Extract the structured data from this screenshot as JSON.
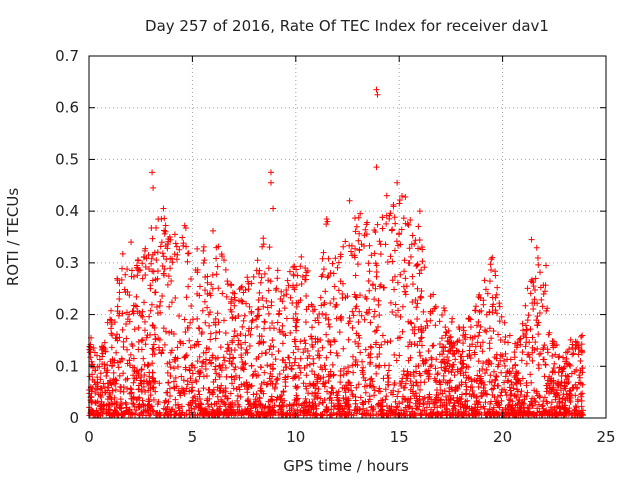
{
  "chart_data": {
    "type": "scatter",
    "title": "Day 257 of 2016, Rate Of TEC Index for receiver dav1",
    "xlabel": "GPS time / hours",
    "ylabel": "ROTI / TECUs",
    "xlim": [
      0,
      25
    ],
    "ylim": [
      0,
      0.7
    ],
    "xticks": [
      0,
      5,
      10,
      15,
      20,
      25
    ],
    "yticks": [
      0,
      0.1,
      0.2,
      0.3,
      0.4,
      0.5,
      0.6,
      0.7
    ],
    "xtick_labels": [
      "0",
      "5",
      "10",
      "15",
      "20",
      "25"
    ],
    "ytick_labels": [
      "0",
      "0.1",
      "0.2",
      "0.3",
      "0.4",
      "0.5",
      "0.6",
      "0.7"
    ],
    "grid": true,
    "marker": "+",
    "color": "#ff0000",
    "series": [
      {
        "name": "dav1",
        "envelope_hours": [
          0.0,
          0.5,
          1.0,
          1.5,
          2.0,
          2.5,
          3.0,
          3.5,
          4.0,
          4.5,
          5.0,
          5.5,
          6.0,
          6.5,
          7.0,
          7.5,
          8.0,
          8.5,
          9.0,
          9.5,
          10.0,
          10.5,
          11.0,
          11.5,
          12.0,
          12.5,
          13.0,
          13.5,
          14.0,
          14.5,
          15.0,
          15.5,
          16.0,
          16.5,
          17.0,
          17.5,
          18.0,
          18.5,
          19.0,
          19.5,
          20.0,
          20.5,
          21.0,
          21.5,
          22.0,
          22.5,
          23.0,
          23.5,
          23.9
        ],
        "envelope_max": [
          0.15,
          0.12,
          0.2,
          0.3,
          0.35,
          0.3,
          0.38,
          0.4,
          0.35,
          0.37,
          0.36,
          0.34,
          0.36,
          0.32,
          0.25,
          0.26,
          0.3,
          0.35,
          0.3,
          0.26,
          0.32,
          0.3,
          0.2,
          0.39,
          0.3,
          0.35,
          0.42,
          0.38,
          0.4,
          0.42,
          0.45,
          0.41,
          0.4,
          0.25,
          0.22,
          0.2,
          0.18,
          0.2,
          0.25,
          0.31,
          0.2,
          0.14,
          0.18,
          0.34,
          0.3,
          0.15,
          0.12,
          0.17,
          0.16
        ],
        "outliers": [
          {
            "x": 0.1,
            "y": 0.155
          },
          {
            "x": 3.05,
            "y": 0.475
          },
          {
            "x": 3.1,
            "y": 0.445
          },
          {
            "x": 3.6,
            "y": 0.405
          },
          {
            "x": 3.5,
            "y": 0.385
          },
          {
            "x": 8.8,
            "y": 0.475
          },
          {
            "x": 8.8,
            "y": 0.455
          },
          {
            "x": 8.9,
            "y": 0.405
          },
          {
            "x": 13.9,
            "y": 0.635
          },
          {
            "x": 13.95,
            "y": 0.625
          },
          {
            "x": 13.9,
            "y": 0.485
          },
          {
            "x": 14.9,
            "y": 0.455
          },
          {
            "x": 14.4,
            "y": 0.43
          },
          {
            "x": 12.6,
            "y": 0.42
          },
          {
            "x": 16.0,
            "y": 0.4
          },
          {
            "x": 21.4,
            "y": 0.345
          },
          {
            "x": 22.1,
            "y": 0.295
          },
          {
            "x": 19.5,
            "y": 0.31
          },
          {
            "x": 21.5,
            "y": 0.255
          }
        ]
      }
    ]
  }
}
